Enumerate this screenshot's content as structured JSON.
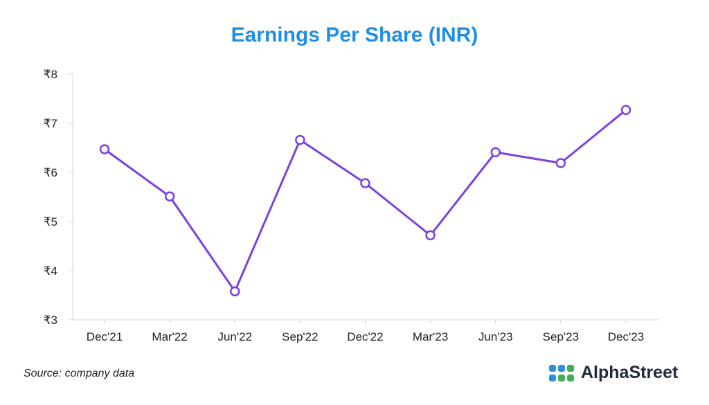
{
  "colors": {
    "title": "#1f8ee6",
    "line": "#7b3fe4",
    "axis_text": "#222222",
    "grid": "#d4d4d4",
    "logo_dark": "#1f2a3c",
    "logo_blue": "#2a8fe0",
    "logo_green": "#3fae5a"
  },
  "chart_data": {
    "type": "line",
    "title": "Earnings Per Share (INR)",
    "categories": [
      "Dec'21",
      "Mar'22",
      "Jun'22",
      "Sep'22",
      "Dec'22",
      "Mar'23",
      "Jun'23",
      "Sep'23",
      "Dec'23"
    ],
    "series": [
      {
        "values": [
          6.47,
          5.51,
          3.58,
          6.66,
          5.78,
          4.72,
          6.41,
          6.19,
          7.27
        ]
      }
    ],
    "ylim": [
      3,
      8
    ],
    "y_ticks": [
      3,
      4,
      5,
      6,
      7,
      8
    ],
    "y_tick_prefix": "₹",
    "grid": false,
    "legend": "none"
  },
  "footer": {
    "source": "Source: company data",
    "brand": "AlphaStreet",
    "brand_icon": "alphastreet-logo-icon"
  }
}
